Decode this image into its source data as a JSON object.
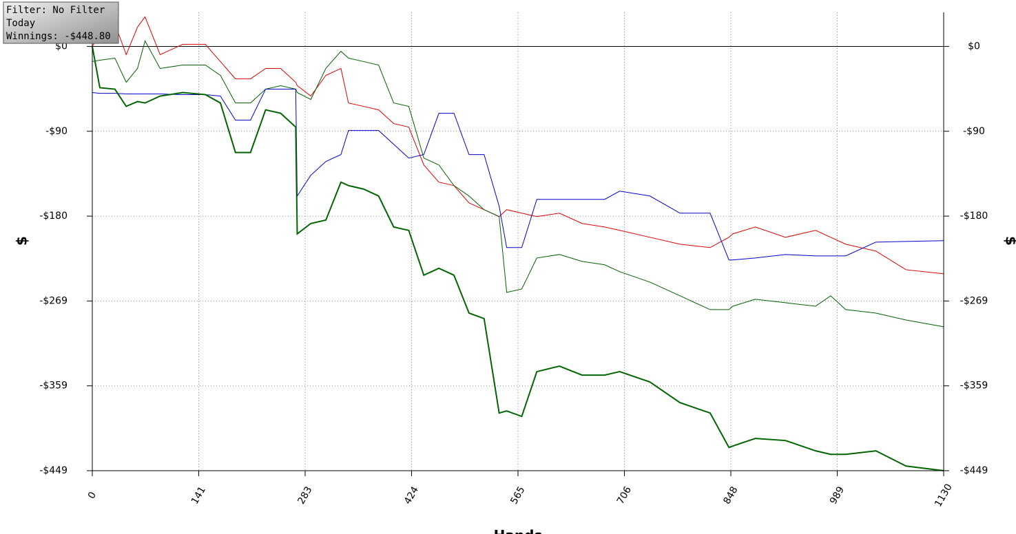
{
  "chart_data": {
    "type": "line",
    "x_label": "Hands",
    "y_label": "$",
    "x": [
      0,
      10,
      30,
      45,
      60,
      70,
      90,
      120,
      150,
      170,
      190,
      210,
      230,
      250,
      270,
      272,
      290,
      310,
      330,
      340,
      360,
      380,
      400,
      420,
      440,
      460,
      480,
      500,
      520,
      540,
      550,
      570,
      590,
      620,
      650,
      680,
      700,
      740,
      780,
      820,
      845,
      850,
      880,
      920,
      960,
      980,
      1000,
      1040,
      1080,
      1130
    ],
    "series": [
      {
        "color": "#e00000",
        "width": 1,
        "values": [
          0,
          13.1,
          24.1,
          -8.7,
          20.4,
          31.3,
          -8.7,
          2.2,
          2.2,
          -16.0,
          -34.3,
          -34.3,
          -23.3,
          -23.3,
          -37.9,
          -41.5,
          -52.5,
          -30.6,
          -23.3,
          -59.8,
          -63.4,
          -67.1,
          -81.6,
          -85.3,
          -125.4,
          -143.6,
          -147.2,
          -165.5,
          -172.7,
          -180.0,
          -172.7,
          -176.4,
          -180.0,
          -176.4,
          -187.3,
          -191.0,
          -194.6,
          -201.9,
          -209.2,
          -212.8,
          -201.9,
          -198.3,
          -191.0,
          -201.9,
          -194.6,
          -201.9,
          -209.2,
          -216.5,
          -236.2,
          -240.5
        ]
      },
      {
        "color": "#006000",
        "width": 1,
        "values": [
          -16.0,
          -14.6,
          -12.4,
          -37.9,
          -23.3,
          5.8,
          -23.3,
          -19.7,
          -19.7,
          -30.6,
          -59.8,
          -59.8,
          -45.2,
          -41.5,
          -45.2,
          -48.8,
          -56.1,
          -23.3,
          -5.1,
          -12.4,
          -16.0,
          -19.7,
          -59.8,
          -63.4,
          -118.1,
          -125.4,
          -147.2,
          -158.2,
          -172.7,
          -180.0,
          -260.2,
          -256.6,
          -223.8,
          -220.1,
          -227.4,
          -231.0,
          -238.3,
          -249.3,
          -263.8,
          -278.4,
          -278.4,
          -274.8,
          -267.5,
          -271.1,
          -274.8,
          -263.8,
          -278.4,
          -282.1,
          -289.4,
          -296.6
        ]
      },
      {
        "color": "#0000cc",
        "width": 1,
        "values": [
          -48.8,
          -49.6,
          -49.6,
          -50.3,
          -50.3,
          -50.3,
          -50.3,
          -51.0,
          -51.0,
          -52.5,
          -78.0,
          -78.0,
          -45.2,
          -45.2,
          -45.2,
          -158.2,
          -136.3,
          -121.7,
          -114.4,
          -88.9,
          -88.9,
          -88.9,
          -103.5,
          -118.1,
          -114.4,
          -70.7,
          -70.7,
          -114.4,
          -114.4,
          -169.1,
          -212.8,
          -212.8,
          -161.8,
          -161.8,
          -161.8,
          -161.8,
          -153.1,
          -158.2,
          -176.4,
          -176.4,
          -225.9,
          -225.9,
          -223.8,
          -220.1,
          -221.6,
          -221.6,
          -221.6,
          -207.0,
          -206.3,
          -205.5
        ]
      },
      {
        "color": "#006400",
        "width": 2,
        "values": [
          0,
          -43.7,
          -45.2,
          -63.4,
          -58.3,
          -59.8,
          -52.5,
          -48.8,
          -51.0,
          -59.8,
          -112.2,
          -112.2,
          -67.1,
          -70.7,
          -85.3,
          -198.3,
          -187.3,
          -183.7,
          -143.6,
          -147.2,
          -150.9,
          -158.2,
          -191.0,
          -194.6,
          -242.0,
          -234.7,
          -242.0,
          -282.1,
          -287.9,
          -387.8,
          -385.6,
          -391.4,
          -344.0,
          -338.2,
          -347.7,
          -347.7,
          -344.0,
          -354.9,
          -376.8,
          -387.8,
          -424.2,
          -422.7,
          -414.7,
          -416.9,
          -427.8,
          -431.5,
          -431.5,
          -427.8,
          -443.9,
          -448.8
        ]
      }
    ],
    "xlim": [
      0,
      1130
    ],
    "xticks": [
      0,
      {
        "value": 141.25,
        "label": "141"
      },
      {
        "value": 282.5,
        "label": "283"
      },
      {
        "value": 423.75,
        "label": "424"
      },
      565,
      {
        "value": 706.25,
        "label": "706"
      },
      {
        "value": 847.5,
        "label": "848"
      },
      {
        "value": 988.75,
        "label": "989"
      },
      1130
    ],
    "ylim": [
      -448.8,
      36
    ],
    "yticks": [
      {
        "value": 0,
        "label": "$0"
      },
      {
        "value": -89.76,
        "label": "-$90"
      },
      {
        "value": -179.52,
        "label": "-$180"
      },
      {
        "value": -269.28,
        "label": "-$269"
      },
      {
        "value": -359.04,
        "label": "-$359"
      },
      {
        "value": -448.8,
        "label": "-$449"
      }
    ],
    "grid": true
  },
  "info_box": {
    "lines": [
      "Filter: No Filter",
      "Today",
      "Winnings: -$448.80"
    ]
  }
}
